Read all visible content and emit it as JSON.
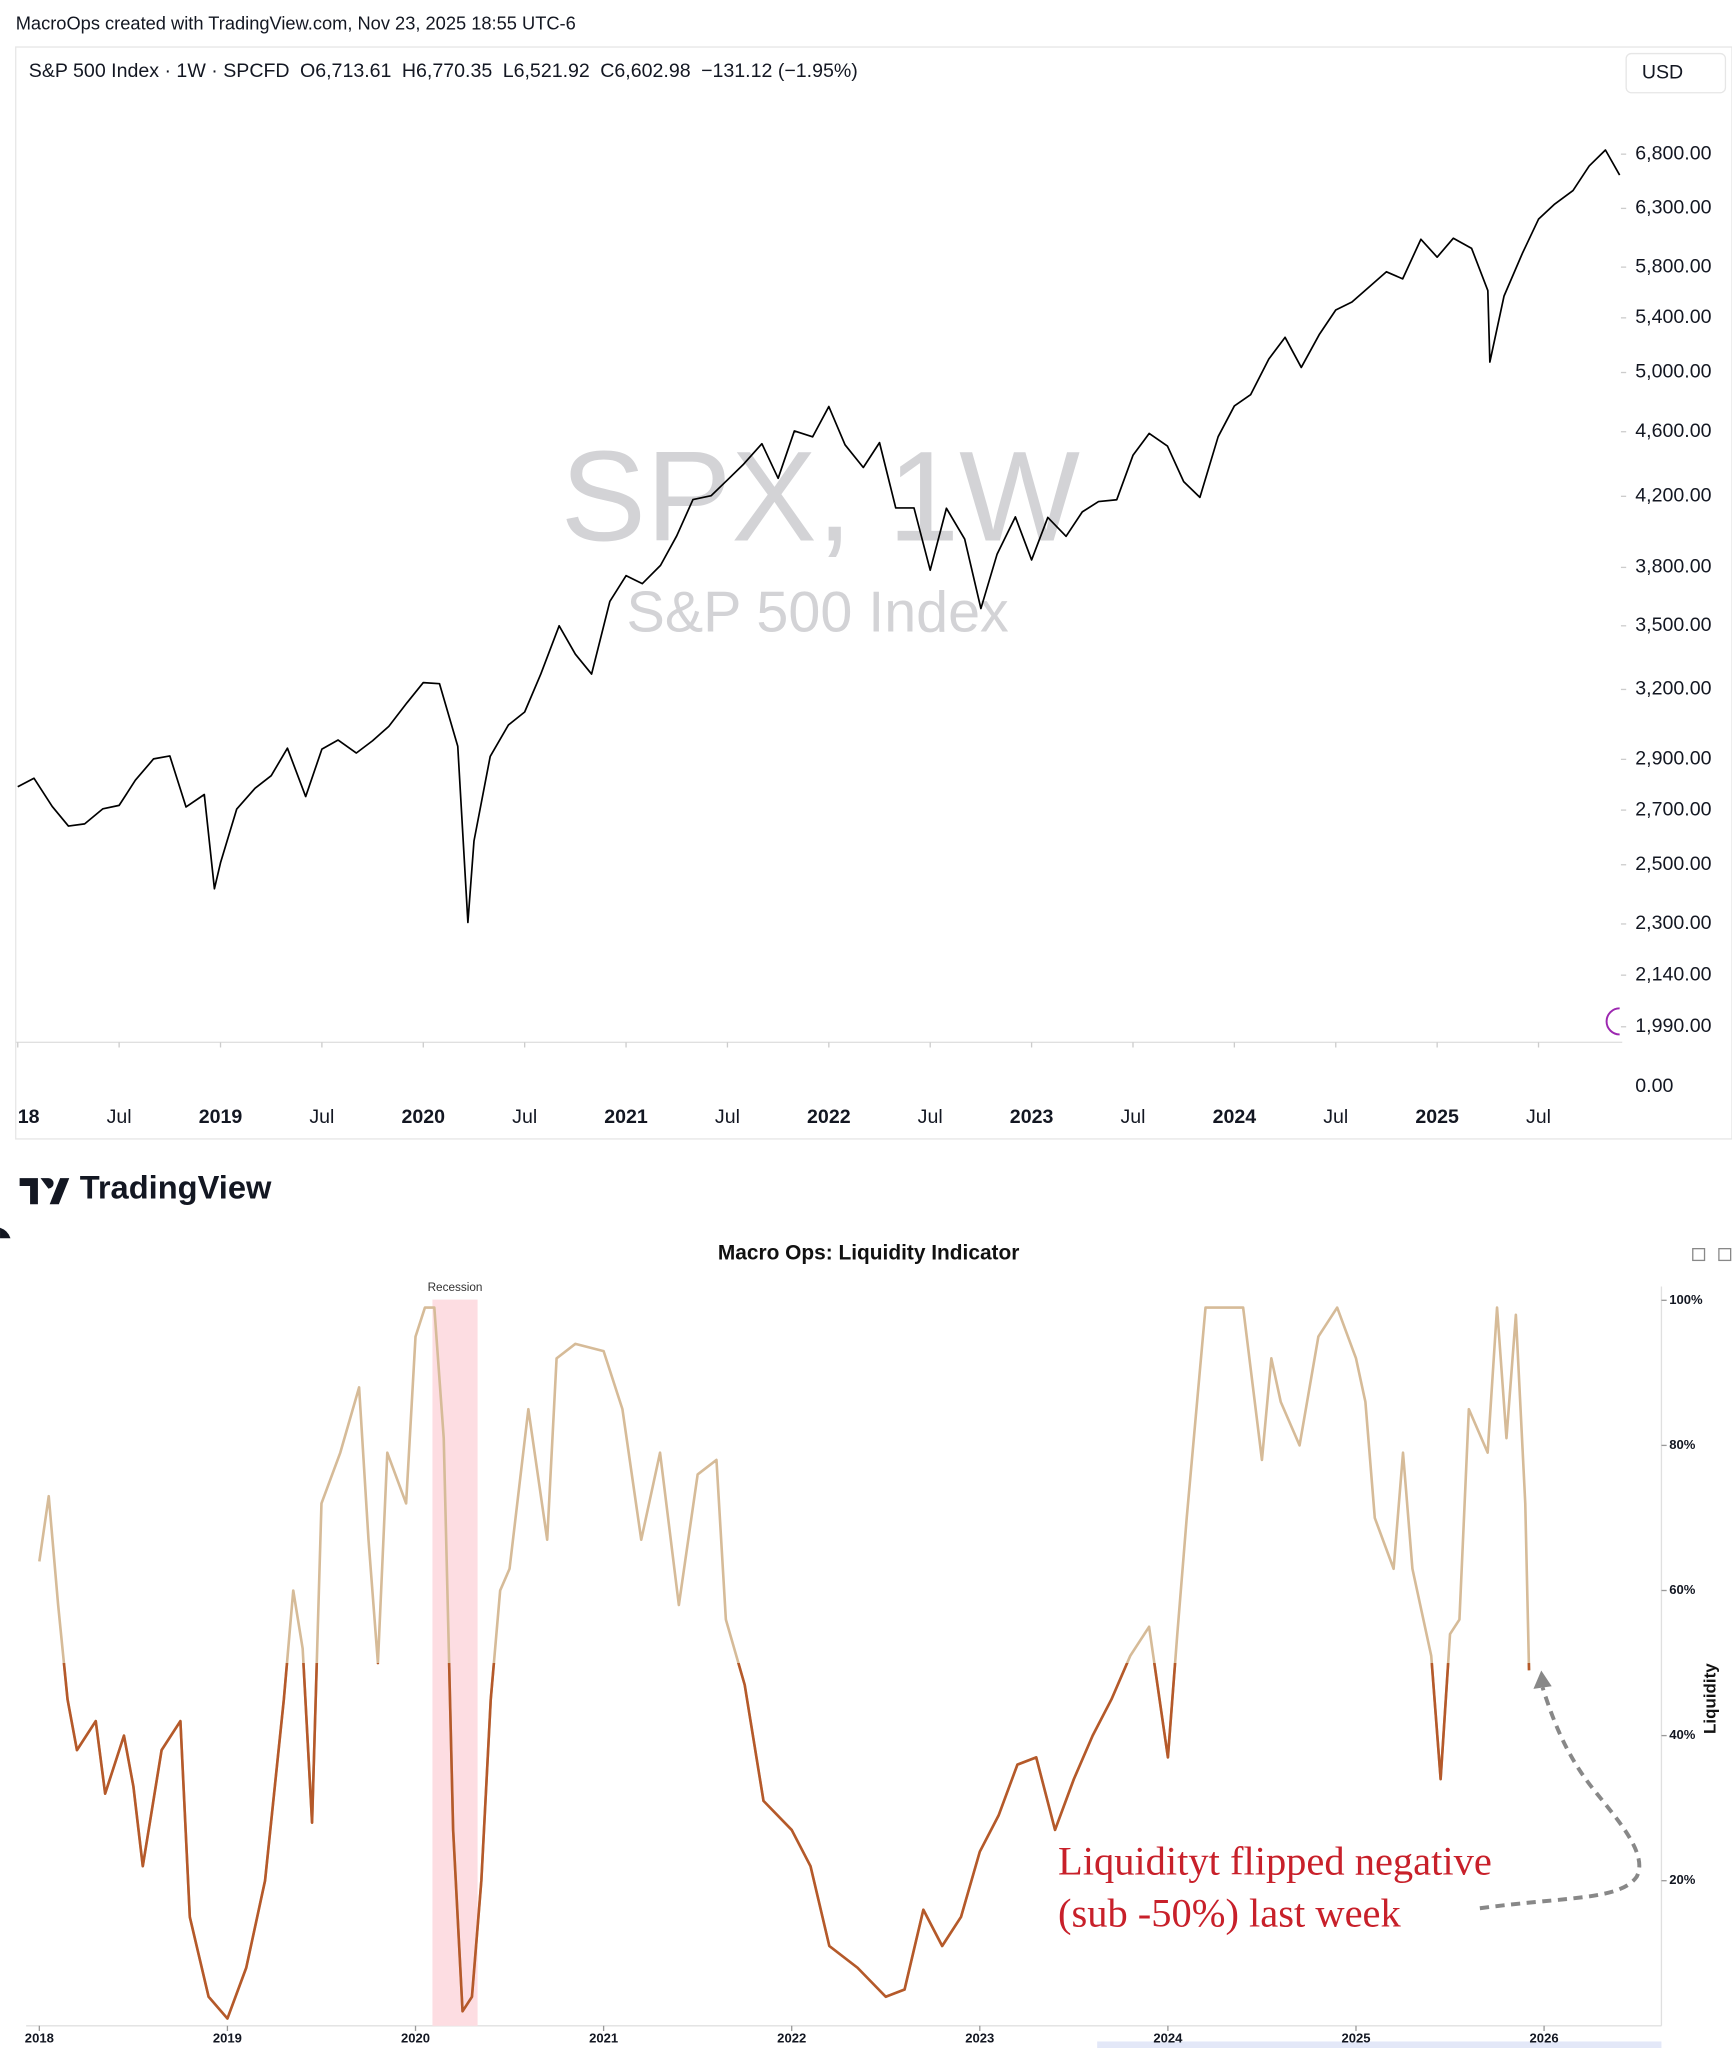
{
  "header": "MacroOps created with TradingView.com, Nov 23, 2025 18:55 UTC-6",
  "logo": "TradingView",
  "chart_data": [
    {
      "type": "line",
      "title": "S&P 500 Index · 1W · SPCFD",
      "ohlc": [
        "O6,713.61",
        "H6,770.35",
        "L6,521.92",
        "C6,602.98",
        "−131.12 (−1.95%)"
      ],
      "watermark": "SPX, 1W",
      "watermark_subtitle": "S&P 500 Index",
      "currency": "USD",
      "log_scale": true,
      "color": "#000000",
      "x": [
        2018.0,
        2018.08,
        2018.17,
        2018.25,
        2018.33,
        2018.42,
        2018.5,
        2018.58,
        2018.67,
        2018.75,
        2018.83,
        2018.92,
        2018.97,
        2019.0,
        2019.08,
        2019.17,
        2019.25,
        2019.33,
        2019.42,
        2019.5,
        2019.58,
        2019.67,
        2019.75,
        2019.83,
        2019.92,
        2020.0,
        2020.08,
        2020.17,
        2020.22,
        2020.25,
        2020.33,
        2020.42,
        2020.5,
        2020.58,
        2020.67,
        2020.75,
        2020.83,
        2020.92,
        2021.0,
        2021.08,
        2021.17,
        2021.25,
        2021.33,
        2021.42,
        2021.5,
        2021.58,
        2021.67,
        2021.75,
        2021.83,
        2021.92,
        2022.0,
        2022.08,
        2022.17,
        2022.25,
        2022.33,
        2022.42,
        2022.5,
        2022.58,
        2022.67,
        2022.75,
        2022.83,
        2022.92,
        2023.0,
        2023.08,
        2023.17,
        2023.25,
        2023.33,
        2023.42,
        2023.5,
        2023.58,
        2023.67,
        2023.75,
        2023.83,
        2023.92,
        2024.0,
        2024.08,
        2024.17,
        2024.25,
        2024.33,
        2024.42,
        2024.5,
        2024.58,
        2024.67,
        2024.75,
        2024.83,
        2024.92,
        2025.0,
        2025.08,
        2025.17,
        2025.25,
        2025.26,
        2025.33,
        2025.42,
        2025.5,
        2025.58,
        2025.67,
        2025.75,
        2025.83,
        2025.9
      ],
      "values": [
        2790,
        2824,
        2714,
        2640,
        2648,
        2705,
        2718,
        2816,
        2902,
        2914,
        2712,
        2760,
        2417,
        2507,
        2704,
        2784,
        2834,
        2946,
        2752,
        2942,
        2980,
        2926,
        2977,
        3038,
        3141,
        3231,
        3226,
        2954,
        2305,
        2585,
        2912,
        3044,
        3100,
        3271,
        3500,
        3363,
        3270,
        3622,
        3756,
        3714,
        3811,
        3973,
        4181,
        4204,
        4298,
        4395,
        4523,
        4308,
        4605,
        4567,
        4766,
        4516,
        4374,
        4530,
        4132,
        4132,
        3785,
        4130,
        3955,
        3586,
        3872,
        4080,
        3840,
        4077,
        3970,
        4109,
        4169,
        4180,
        4450,
        4589,
        4508,
        4288,
        4194,
        4568,
        4770,
        4846,
        5096,
        5254,
        5036,
        5278,
        5460,
        5522,
        5648,
        5762,
        5705,
        6032,
        5882,
        6041,
        5955,
        5612,
        5074,
        5569,
        5912,
        6205,
        6339,
        6460,
        6688,
        6840,
        6603
      ],
      "xlim": [
        2017.99,
        2025.9
      ],
      "xticks": [
        {
          "value": 2018,
          "label": "18"
        },
        {
          "value": 2018.5,
          "label": "Jul"
        },
        2019,
        {
          "value": 2019.5,
          "label": "Jul"
        },
        2020,
        {
          "value": 2020.5,
          "label": "Jul"
        },
        2021,
        {
          "value": 2021.5,
          "label": "Jul"
        },
        2022,
        {
          "value": 2022.5,
          "label": "Jul"
        },
        2023,
        {
          "value": 2023.5,
          "label": "Jul"
        },
        2024,
        {
          "value": 2024.5,
          "label": "Jul"
        },
        2025,
        {
          "value": 2025.5,
          "label": "Jul"
        }
      ],
      "ylim": [
        1947,
        7428
      ],
      "yticks": [
        {
          "value": 1990,
          "label": "1,990.00"
        },
        {
          "value": 2140,
          "label": "2,140.00"
        },
        {
          "value": 2300,
          "label": "2,300.00"
        },
        {
          "value": 2500,
          "label": "2,500.00"
        },
        {
          "value": 2700,
          "label": "2,700.00"
        },
        {
          "value": 2900,
          "label": "2,900.00"
        },
        {
          "value": 3200,
          "label": "3,200.00"
        },
        {
          "value": 3500,
          "label": "3,500.00"
        },
        {
          "value": 3800,
          "label": "3,800.00"
        },
        {
          "value": 4200,
          "label": "4,200.00"
        },
        {
          "value": 4600,
          "label": "4,600.00"
        },
        {
          "value": 5000,
          "label": "5,000.00"
        },
        {
          "value": 5400,
          "label": "5,400.00"
        },
        {
          "value": 5800,
          "label": "5,800.00"
        },
        {
          "value": 6300,
          "label": "6,300.00"
        },
        {
          "value": 6800,
          "label": "6,800.00"
        }
      ],
      "axis_floor_label": "0.00"
    },
    {
      "type": "line",
      "title": "Macro Ops: Liquidity Indicator",
      "y_label": "Liquidity",
      "threshold": 50,
      "color": "#d6bb98",
      "below_color": "#b5592a",
      "x": [
        2018.0,
        2018.05,
        2018.1,
        2018.15,
        2018.2,
        2018.3,
        2018.35,
        2018.45,
        2018.5,
        2018.55,
        2018.65,
        2018.75,
        2018.8,
        2018.9,
        2019.0,
        2019.1,
        2019.2,
        2019.3,
        2019.35,
        2019.4,
        2019.45,
        2019.5,
        2019.6,
        2019.7,
        2019.75,
        2019.8,
        2019.85,
        2019.95,
        2020.0,
        2020.05,
        2020.1,
        2020.15,
        2020.2,
        2020.25,
        2020.3,
        2020.35,
        2020.4,
        2020.45,
        2020.5,
        2020.6,
        2020.7,
        2020.75,
        2020.85,
        2021.0,
        2021.1,
        2021.2,
        2021.3,
        2021.4,
        2021.5,
        2021.6,
        2021.65,
        2021.75,
        2021.85,
        2022.0,
        2022.1,
        2022.2,
        2022.35,
        2022.5,
        2022.6,
        2022.7,
        2022.8,
        2022.9,
        2023.0,
        2023.1,
        2023.2,
        2023.3,
        2023.4,
        2023.5,
        2023.6,
        2023.7,
        2023.8,
        2023.9,
        2024.0,
        2024.05,
        2024.1,
        2024.2,
        2024.3,
        2024.4,
        2024.5,
        2024.55,
        2024.6,
        2024.7,
        2024.8,
        2024.9,
        2025.0,
        2025.05,
        2025.1,
        2025.2,
        2025.25,
        2025.3,
        2025.4,
        2025.45,
        2025.5,
        2025.55,
        2025.6,
        2025.7,
        2025.75,
        2025.8,
        2025.85,
        2025.9,
        2025.92
      ],
      "values": [
        64,
        73,
        58,
        45,
        38,
        42,
        32,
        40,
        33,
        22,
        38,
        42,
        15,
        4,
        1,
        8,
        20,
        45,
        60,
        52,
        28,
        72,
        79,
        88,
        67,
        50,
        79,
        72,
        95,
        99,
        99,
        81,
        27,
        2,
        4,
        20,
        45,
        60,
        63,
        85,
        67,
        92,
        94,
        93,
        85,
        67,
        79,
        58,
        76,
        78,
        56,
        47,
        31,
        27,
        22,
        11,
        8,
        4,
        5,
        16,
        11,
        15,
        24,
        29,
        36,
        37,
        27,
        34,
        40,
        45,
        51,
        55,
        37,
        54,
        70,
        99,
        99,
        99,
        78,
        92,
        86,
        80,
        95,
        99,
        92,
        86,
        70,
        63,
        79,
        63,
        51,
        34,
        54,
        56,
        85,
        79,
        99,
        81,
        98,
        72,
        49
      ],
      "xlim": [
        2017.93,
        2026.61
      ],
      "xticks": [
        2018,
        2019,
        2020,
        2021,
        2022,
        2023,
        2024,
        2025,
        2026
      ],
      "ylim": [
        0,
        101
      ],
      "yticks": [
        {
          "value": 20,
          "label": "20%"
        },
        {
          "value": 40,
          "label": "40%"
        },
        {
          "value": 60,
          "label": "60%"
        },
        {
          "value": 80,
          "label": "80%"
        },
        {
          "value": 100,
          "label": "100%"
        }
      ],
      "shaded_regions": [
        {
          "label": "Recession",
          "x": [
            2020.09,
            2020.33
          ],
          "color": "#fddde2"
        }
      ],
      "annotations": [
        {
          "text": [
            "Liquidityt flipped negative",
            "(sub -50%) last week"
          ],
          "color": "#c8202a"
        }
      ]
    }
  ]
}
